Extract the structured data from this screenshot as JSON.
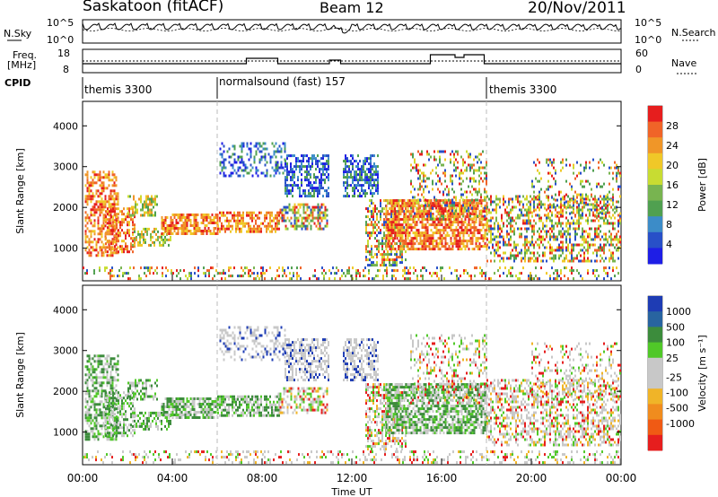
{
  "header": {
    "station": "Saskatoon (fitACF)",
    "beam": "Beam 12",
    "date": "20/Nov/2011"
  },
  "side_labels": {
    "nsky": "N.Sky",
    "nsky_max": "10^5",
    "nsky_min": "10^0",
    "nsearch": "N.Search",
    "nsearch_max": "10^5",
    "nsearch_min": "10^0",
    "freq": "Freq.",
    "freq_unit": "[MHz]",
    "freq_max": "18",
    "freq_min": "8",
    "nave": "Nave",
    "nave_max": "60",
    "nave_min": "0",
    "cpid": "CPID"
  },
  "cpid_segments": [
    {
      "label": "themis 3300",
      "start_hour": 0
    },
    {
      "label": "normalsound (fast) 157",
      "start_hour": 6
    },
    {
      "label": "themis 3300",
      "start_hour": 18
    }
  ],
  "chart_data": [
    {
      "type": "heatmap",
      "name": "power",
      "ylabel": "Slant Range [km]",
      "ylim": [
        200,
        4600
      ],
      "yticks": [
        "1000",
        "2000",
        "3000",
        "4000"
      ],
      "xlim": [
        0,
        24
      ],
      "colorbar": {
        "label": "Power [dB]",
        "ticks": [
          "4",
          "8",
          "12",
          "16",
          "20",
          "24",
          "28"
        ],
        "colors": [
          "#1e1ee6",
          "#2850c8",
          "#3c8cc8",
          "#50a050",
          "#78b450",
          "#c8dc32",
          "#f0c828",
          "#f09628",
          "#f06428",
          "#e61e1e"
        ]
      }
    },
    {
      "type": "heatmap",
      "name": "velocity",
      "xlabel": "Time UT",
      "ylabel": "Slant Range [km]",
      "ylim": [
        200,
        4600
      ],
      "yticks": [
        "1000",
        "2000",
        "3000",
        "4000"
      ],
      "xlim": [
        0,
        24
      ],
      "xticks": [
        "00:00",
        "04:00",
        "08:00",
        "12:00",
        "16:00",
        "20:00",
        "00:00"
      ],
      "colorbar": {
        "label": "Velocity [m s⁻¹]",
        "ticks": [
          "1000",
          "500",
          "100",
          "25",
          "-25",
          "-100",
          "-500",
          "-1000"
        ],
        "colors": [
          "#1e3cb4",
          "#2864a0",
          "#3c8c3c",
          "#50c828",
          "#c8c8c8",
          "#c8c8c8",
          "#f0b428",
          "#f08c1e",
          "#f05a14",
          "#e61e1e"
        ]
      }
    }
  ]
}
